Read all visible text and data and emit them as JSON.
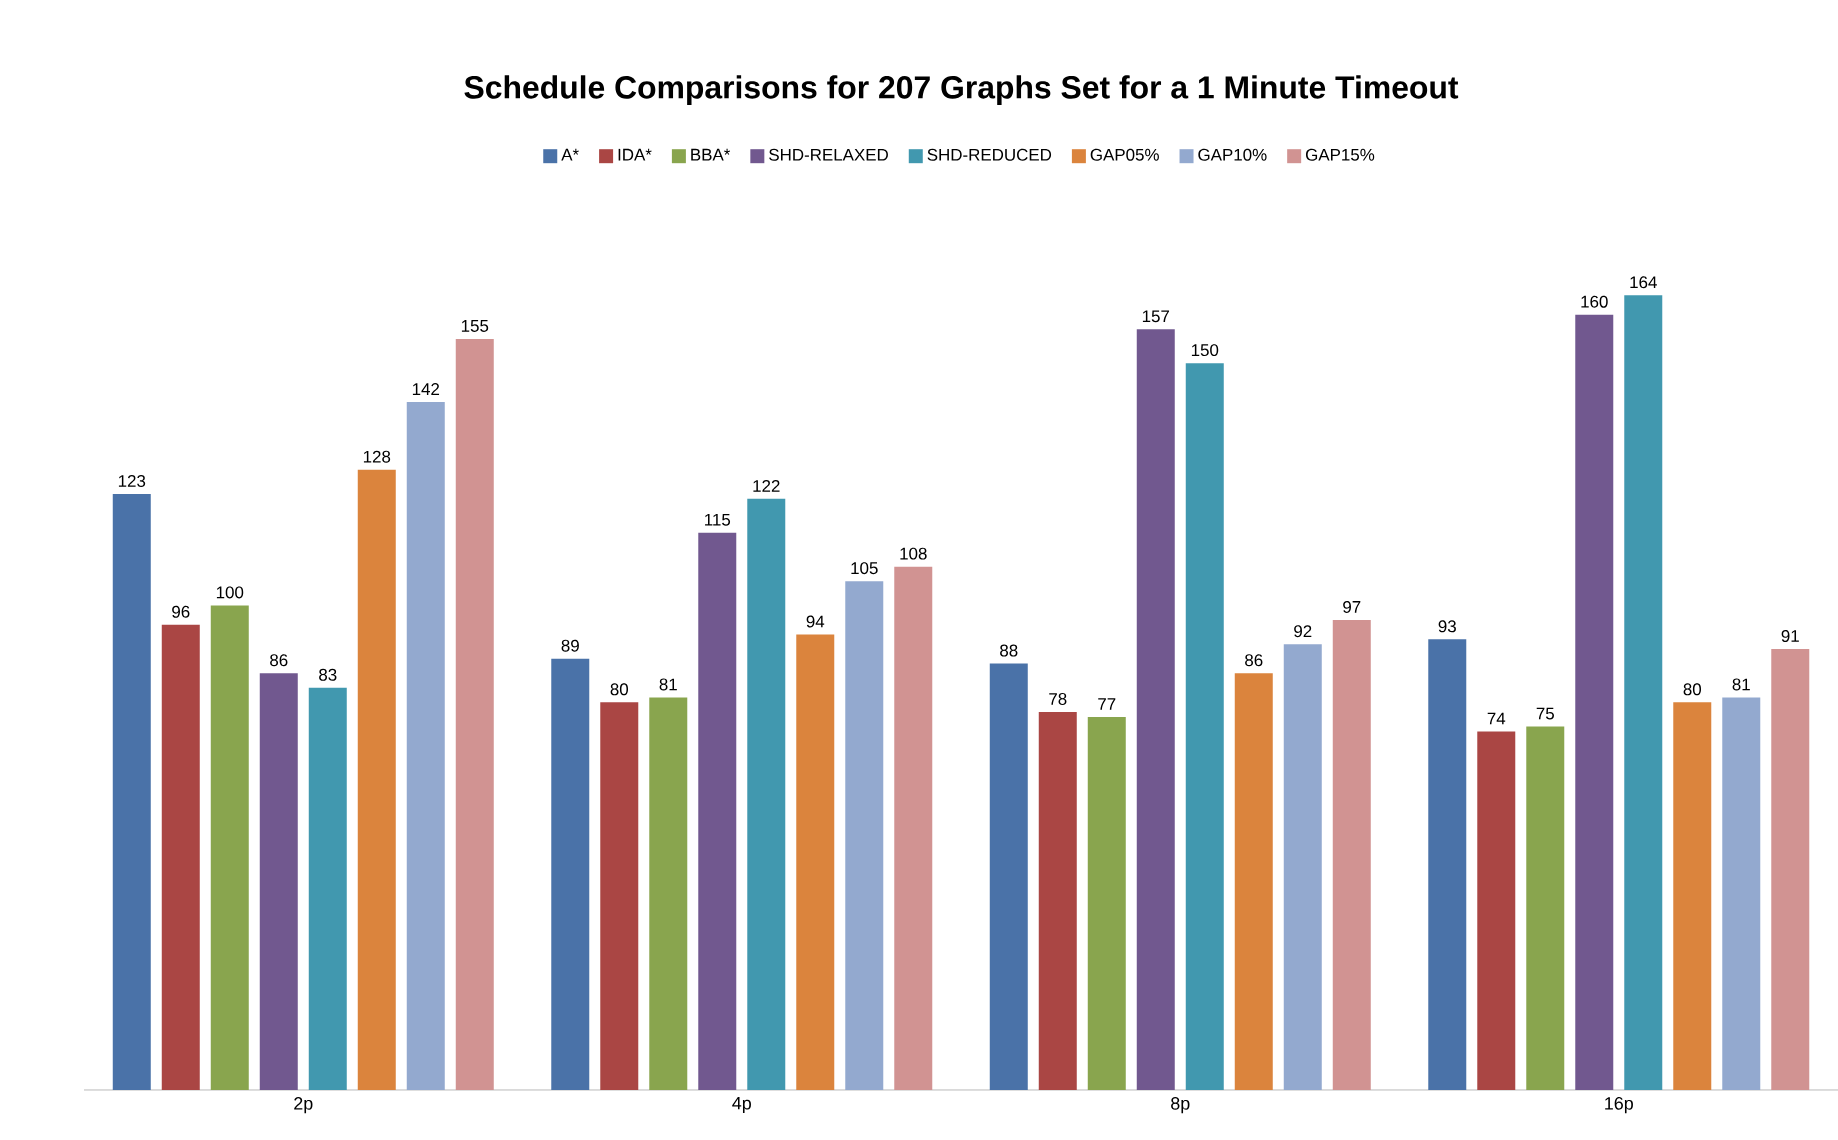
{
  "chart_data": {
    "type": "bar",
    "title": "Schedule Comparisons for 207 Graphs Set for a 1 Minute Timeout",
    "categories": [
      "2p",
      "4p",
      "8p",
      "16p"
    ],
    "series": [
      {
        "name": "A*",
        "color": "#4a72a8",
        "values": [
          123,
          89,
          88,
          93
        ]
      },
      {
        "name": "IDA*",
        "color": "#aa4644",
        "values": [
          96,
          80,
          78,
          74
        ]
      },
      {
        "name": "BBA*",
        "color": "#89a54e",
        "values": [
          100,
          81,
          77,
          75
        ]
      },
      {
        "name": "SHD-RELAXED",
        "color": "#71588f",
        "values": [
          86,
          115,
          157,
          160
        ]
      },
      {
        "name": "SHD-REDUCED",
        "color": "#4198af",
        "values": [
          83,
          122,
          150,
          164
        ]
      },
      {
        "name": "GAP05%",
        "color": "#db843d",
        "values": [
          128,
          94,
          86,
          80
        ]
      },
      {
        "name": "GAP10%",
        "color": "#93a9cf",
        "values": [
          142,
          105,
          92,
          81
        ]
      },
      {
        "name": "GAP15%",
        "color": "#d19392",
        "values": [
          155,
          108,
          97,
          91
        ]
      }
    ],
    "data_labels": true,
    "legend": "top"
  }
}
